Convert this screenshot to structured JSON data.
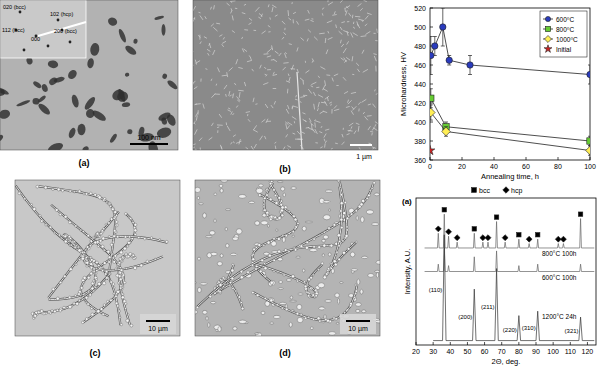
{
  "panels": [
    {
      "label": "(a)",
      "scale_bar": "100 nm",
      "annotations": [
        "020 (bcc)",
        "102 (hcp)",
        "112 (bcc)",
        "000",
        "200 (bcc)"
      ]
    },
    {
      "label": "(b)",
      "scale_bar": "1 µm"
    },
    {
      "label": "(c)",
      "scale_bar": "10 µm"
    },
    {
      "label": "(d)",
      "scale_bar": "10 µm"
    }
  ],
  "chart_data": [
    {
      "type": "line",
      "x_label": "Annealing time, h",
      "y_label": "Microhardness, HV",
      "xlim": [
        0,
        100
      ],
      "xticks": [
        0,
        20,
        40,
        60,
        80,
        100
      ],
      "ylim": [
        360,
        520
      ],
      "yticks": [
        360,
        380,
        400,
        420,
        440,
        460,
        480,
        500,
        520
      ],
      "grid": false,
      "legend": "upper right",
      "series": [
        {
          "name": "600⁰C",
          "color": "#2a3bbd",
          "marker": "circle",
          "line_style": "solid",
          "x": [
            0.5,
            3,
            8,
            12,
            25,
            100
          ],
          "values": [
            470,
            480,
            500,
            465,
            460,
            450
          ],
          "errors": [
            20,
            10,
            20,
            5,
            10,
            10
          ]
        },
        {
          "name": "800⁰C",
          "color": "#66cc33",
          "marker": "square",
          "line_style": "solid",
          "x": [
            0.5,
            10,
            100
          ],
          "values": [
            425,
            395,
            380
          ],
          "errors": [
            10,
            5,
            5
          ]
        },
        {
          "name": "1000⁰C",
          "color": "#ffee55",
          "marker": "diamond",
          "line_style": "solid",
          "x": [
            0.5,
            10,
            100
          ],
          "values": [
            410,
            390,
            370
          ],
          "errors": [
            8,
            5,
            5
          ]
        },
        {
          "name": "Initial",
          "color": "#cc2222",
          "marker": "star",
          "line_style": "none",
          "x": [
            0
          ],
          "values": [
            370
          ]
        }
      ]
    },
    {
      "type": "line",
      "title": "(a)",
      "x_label": "2Θ, deg.",
      "y_label": "Intensity, A.U.",
      "xlim": [
        20,
        125
      ],
      "xticks": [
        20,
        30,
        40,
        50,
        60,
        70,
        80,
        90,
        100,
        110,
        120
      ],
      "ylim": [
        0,
        100
      ],
      "tick_labels": "x",
      "legend": "upper center",
      "series": [
        {
          "name": "800°C 100h",
          "type": "line",
          "color": "#666666",
          "line_style": "solid",
          "x": [
            25,
            32.5,
            33,
            33.5,
            36,
            36.5,
            37,
            38.5,
            39,
            39.5,
            43.5,
            44,
            44.5,
            53.5,
            54,
            54.5,
            58.5,
            59,
            59.5,
            61.5,
            62,
            62.5,
            66.5,
            67,
            67.5,
            71.5,
            72,
            72.5,
            79.5,
            80,
            80.5,
            85.5,
            86,
            86.5,
            90.5,
            91,
            91.5,
            102.5,
            103,
            103.5,
            105.5,
            106,
            106.5,
            115.5,
            116,
            116.5,
            124
          ],
          "values": [
            66,
            66,
            76,
            66,
            66,
            89,
            66,
            66,
            74,
            66,
            66,
            70,
            66,
            66,
            76,
            66,
            66,
            70,
            66,
            66,
            70,
            66,
            66,
            84,
            66,
            66,
            70,
            66,
            66,
            72,
            66,
            66,
            69,
            66,
            66,
            72,
            66,
            66,
            69,
            66,
            66,
            69,
            66,
            66,
            86,
            66,
            66
          ]
        },
        {
          "name": "600°C 100h",
          "type": "line",
          "color": "#666666",
          "line_style": "solid",
          "x": [
            25,
            32.5,
            33,
            33.5,
            36,
            36.5,
            37,
            38.5,
            39,
            39.5,
            53.5,
            54,
            54.5,
            66.5,
            67,
            67.5,
            79.5,
            80,
            80.5,
            90.5,
            91,
            91.5,
            115.5,
            116,
            116.5,
            124
          ],
          "values": [
            50,
            50,
            55,
            50,
            50,
            66,
            50,
            50,
            54,
            50,
            50,
            60,
            50,
            50,
            64,
            50,
            50,
            54,
            50,
            50,
            55,
            50,
            50,
            55,
            50,
            50
          ]
        },
        {
          "name": "1200°C 24h",
          "type": "line",
          "color": "#333333",
          "line_style": "solid",
          "x": [
            30,
            35.5,
            36.5,
            37.5,
            53,
            54,
            55,
            66,
            67,
            68,
            79,
            80,
            81,
            90,
            91,
            92,
            115,
            116,
            117,
            124
          ],
          "values": [
            3,
            3,
            75,
            3,
            3,
            38,
            3,
            3,
            52,
            3,
            3,
            20,
            3,
            3,
            23,
            3,
            3,
            19,
            3,
            3
          ]
        },
        {
          "name": "bcc",
          "type": "scatter",
          "color": "#000000",
          "marker": "square",
          "x": [
            36.5,
            54,
            67,
            80,
            91,
            116
          ],
          "values": [
            92,
            79,
            87,
            75,
            75,
            89
          ]
        },
        {
          "name": "hcp",
          "type": "scatter",
          "color": "#000000",
          "marker": "diamond",
          "x": [
            33,
            39,
            44,
            59,
            62,
            72,
            86,
            103,
            106
          ],
          "values": [
            79,
            77,
            73,
            73,
            73,
            73,
            72,
            72,
            72
          ]
        }
      ],
      "annotations": [
        {
          "text": "(110)",
          "x": 36.5,
          "y": 75
        },
        {
          "text": "(200)",
          "x": 54,
          "y": 38
        },
        {
          "text": "(211)",
          "x": 67,
          "y": 52
        },
        {
          "text": "(220)",
          "x": 80,
          "y": 20
        },
        {
          "text": "(310)",
          "x": 91,
          "y": 23
        },
        {
          "text": "(321)",
          "x": 116,
          "y": 19
        }
      ]
    }
  ]
}
